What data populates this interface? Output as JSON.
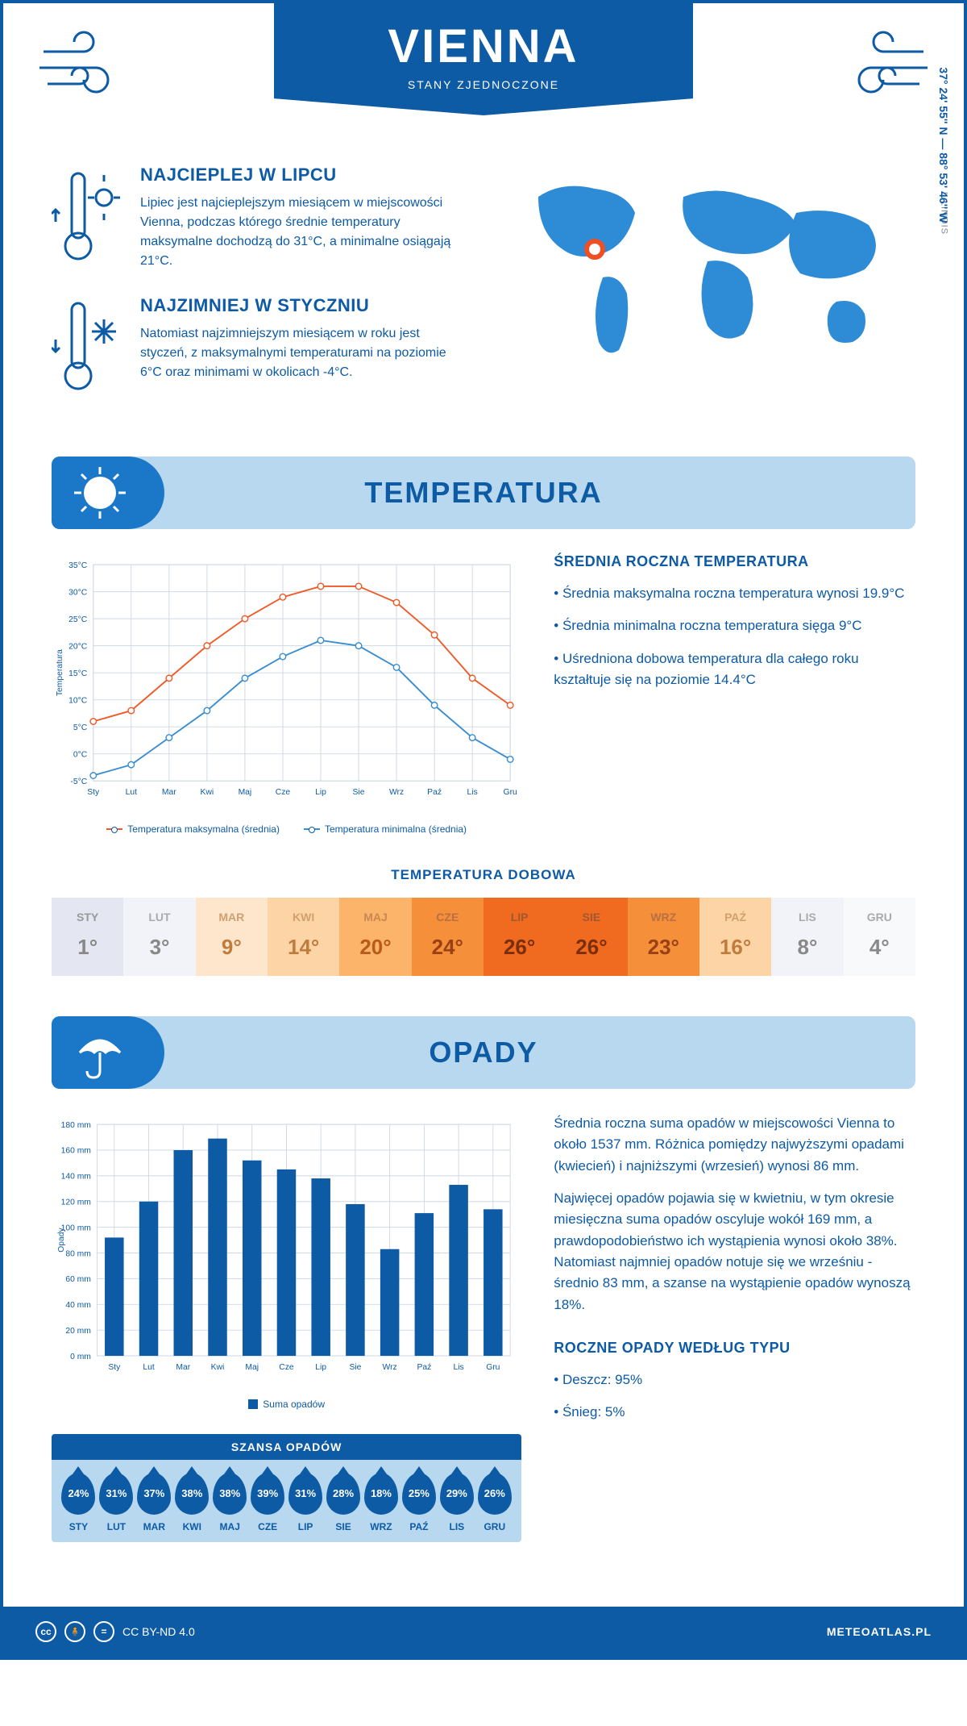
{
  "header": {
    "city": "VIENNA",
    "country": "STANY ZJEDNOCZONE"
  },
  "coords": "37° 24' 55'' N — 88° 53' 46'' W",
  "region": "ILLINOIS",
  "facts": {
    "hot": {
      "title": "NAJCIEPLEJ W LIPCU",
      "text": "Lipiec jest najcieplejszym miesiącem w miejscowości Vienna, podczas którego średnie temperatury maksymalne dochodzą do 31°C, a minimalne osiągają 21°C."
    },
    "cold": {
      "title": "NAJZIMNIEJ W STYCZNIU",
      "text": "Natomiast najzimniejszym miesiącem w roku jest styczeń, z maksymalnymi temperaturami na poziomie 6°C oraz minimami w okolicach -4°C."
    }
  },
  "months": [
    "Sty",
    "Lut",
    "Mar",
    "Kwi",
    "Maj",
    "Cze",
    "Lip",
    "Sie",
    "Wrz",
    "Paź",
    "Lis",
    "Gru"
  ],
  "months_upper": [
    "STY",
    "LUT",
    "MAR",
    "KWI",
    "MAJ",
    "CZE",
    "LIP",
    "SIE",
    "WRZ",
    "PAŹ",
    "LIS",
    "GRU"
  ],
  "temperature": {
    "section_title": "TEMPERATURA",
    "chart": {
      "type": "line",
      "x": [
        "Sty",
        "Lut",
        "Mar",
        "Kwi",
        "Maj",
        "Cze",
        "Lip",
        "Sie",
        "Wrz",
        "Paź",
        "Lis",
        "Gru"
      ],
      "series": [
        {
          "name": "Temperatura maksymalna (średnia)",
          "color": "#f05a28",
          "values": [
            6,
            8,
            14,
            20,
            25,
            29,
            31,
            31,
            28,
            22,
            14,
            9
          ]
        },
        {
          "name": "Temperatura minimalna (średnia)",
          "color": "#3a8dd0",
          "values": [
            -4,
            -2,
            3,
            8,
            14,
            18,
            21,
            20,
            16,
            9,
            3,
            -1
          ]
        }
      ],
      "ylim": [
        -5,
        35
      ],
      "ytick_step": 5,
      "y_suffix": "°C",
      "ylabel": "Temperatura",
      "grid_color": "#cfd8e3",
      "background": "#ffffff",
      "line_width": 2,
      "marker": "circle",
      "marker_fill": "#ffffff",
      "marker_size": 4
    },
    "side": {
      "title": "ŚREDNIA ROCZNA TEMPERATURA",
      "bullets": [
        "• Średnia maksymalna roczna temperatura wynosi 19.9°C",
        "• Średnia minimalna roczna temperatura sięga 9°C",
        "• Uśredniona dobowa temperatura dla całego roku kształtuje się na poziomie 14.4°C"
      ]
    },
    "daily_title": "TEMPERATURA DOBOWA",
    "daily": {
      "values": [
        1,
        3,
        9,
        14,
        20,
        24,
        26,
        26,
        23,
        16,
        8,
        4
      ],
      "cell_bg": [
        "#e4e6f2",
        "#f2f3f9",
        "#fde6cc",
        "#fdd4a6",
        "#fbb469",
        "#f58f3a",
        "#f06a1f",
        "#f06a1f",
        "#f58f3a",
        "#fdd4a6",
        "#f2f3f9",
        "#f8f9fb"
      ],
      "cell_fg": [
        "#888",
        "#888",
        "#c07c3c",
        "#c07c3c",
        "#b85a1a",
        "#994015",
        "#7a2e0d",
        "#7a2e0d",
        "#994015",
        "#c07c3c",
        "#888",
        "#888"
      ],
      "label_fg": [
        "#999",
        "#aaa",
        "#d0a070",
        "#d0a070",
        "#c88850",
        "#b87040",
        "#a05830",
        "#a05830",
        "#b87040",
        "#d0a070",
        "#aaa",
        "#aaa"
      ]
    }
  },
  "precip": {
    "section_title": "OPADY",
    "chart": {
      "type": "bar",
      "x": [
        "Sty",
        "Lut",
        "Mar",
        "Kwi",
        "Maj",
        "Cze",
        "Lip",
        "Sie",
        "Wrz",
        "Paź",
        "Lis",
        "Gru"
      ],
      "values": [
        92,
        120,
        160,
        169,
        152,
        145,
        138,
        118,
        83,
        111,
        133,
        114
      ],
      "bar_color": "#0d5aa5",
      "ylim": [
        0,
        180
      ],
      "ytick_step": 20,
      "y_suffix": " mm",
      "ylabel": "Opady",
      "legend": "Suma opadów",
      "grid_color": "#cfd8e3",
      "background": "#ffffff",
      "bar_width": 0.55
    },
    "side_paras": [
      "Średnia roczna suma opadów w miejscowości Vienna to około 1537 mm. Różnica pomiędzy najwyższymi opadami (kwiecień) i najniższymi (wrzesień) wynosi 86 mm.",
      "Najwięcej opadów pojawia się w kwietniu, w tym okresie miesięczna suma opadów oscyluje wokół 169 mm, a prawdopodobieństwo ich wystąpienia wynosi około 38%. Natomiast najmniej opadów notuje się we wrześniu - średnio 83 mm, a szanse na wystąpienie opadów wynoszą 18%."
    ],
    "chance_title": "SZANSA OPADÓW",
    "chance": [
      24,
      31,
      37,
      38,
      38,
      39,
      31,
      28,
      18,
      25,
      29,
      26
    ],
    "type_title": "ROCZNE OPADY WEDŁUG TYPU",
    "type_bullets": [
      "• Deszcz: 95%",
      "• Śnieg: 5%"
    ]
  },
  "footer": {
    "license": "CC BY-ND 4.0",
    "brand": "METEOATLAS.PL"
  }
}
